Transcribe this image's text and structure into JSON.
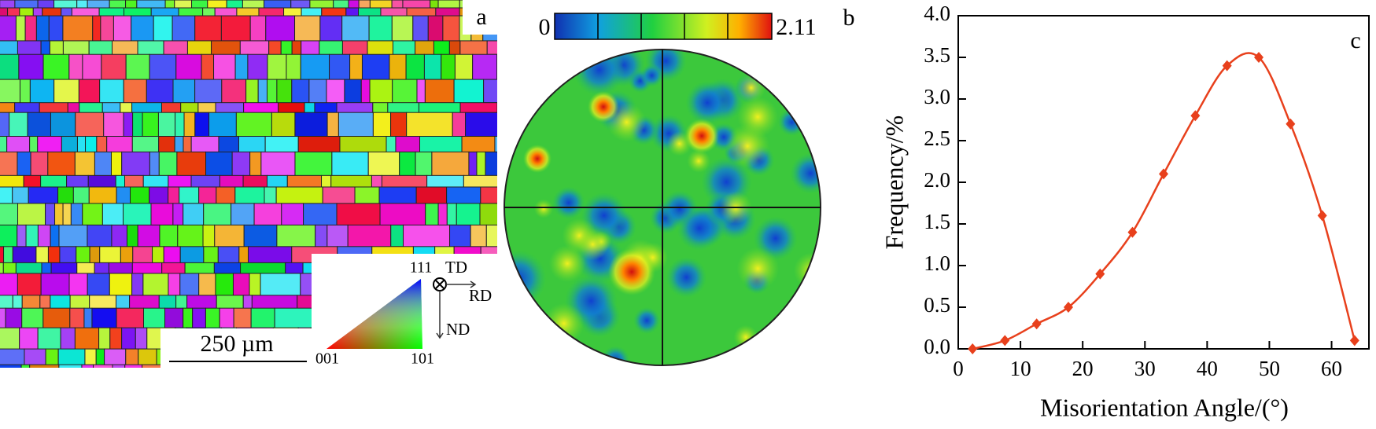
{
  "panel_a": {
    "label": "a",
    "scale_bar": "250 µm",
    "ipf_corners": [
      "111",
      "001",
      "101"
    ],
    "axes": [
      "TD",
      "RD",
      "ND"
    ]
  },
  "panel_b": {
    "label": "b",
    "colorbar": {
      "min": 0,
      "max": 2.11
    }
  },
  "chart_data": {
    "type": "line",
    "panel_label": "c",
    "xlabel": "Misorientation Angle/(°)",
    "ylabel": "Frequency/%",
    "x": [
      2.3,
      7.5,
      12.6,
      17.7,
      22.8,
      28,
      33,
      38.1,
      43.2,
      48.3,
      53.4,
      58.5,
      63.7
    ],
    "values": [
      0,
      0.1,
      0.3,
      0.5,
      0.9,
      1.4,
      2.1,
      2.8,
      3.4,
      3.5,
      2.7,
      1.6,
      0.1
    ],
    "color": "#e8401c",
    "xlim": [
      0,
      66
    ],
    "xticks": [
      0,
      10,
      20,
      30,
      40,
      50,
      60
    ],
    "ylim": [
      0,
      4
    ],
    "yticks": [
      {
        "value": 0,
        "label": "0.0"
      },
      0.5,
      {
        "value": 1,
        "label": "1.0"
      },
      1.5,
      {
        "value": 2,
        "label": "2.0"
      },
      2.5,
      {
        "value": 3,
        "label": "3.0"
      },
      3.5,
      {
        "value": 4,
        "label": "4.0"
      }
    ]
  }
}
